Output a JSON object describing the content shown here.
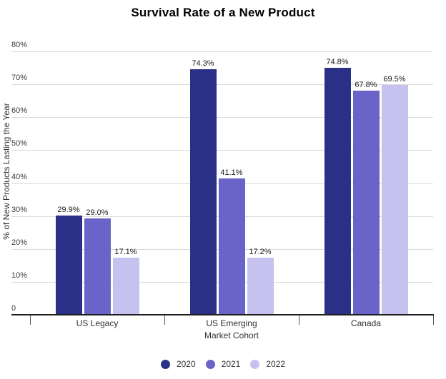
{
  "chart_data": {
    "type": "bar",
    "title": "Survival Rate of a New Product",
    "xlabel": "Market Cohort",
    "ylabel": "% of New Products Lasting the Year",
    "categories": [
      "US Legacy",
      "US Emerging",
      "Canada"
    ],
    "series": [
      {
        "name": "2020",
        "color": "#2b3087",
        "values": [
          29.9,
          74.3,
          74.8
        ],
        "labels": [
          "29.9%",
          "74.3%",
          "74.8%"
        ]
      },
      {
        "name": "2021",
        "color": "#6a64c8",
        "values": [
          29.0,
          41.1,
          67.8
        ],
        "labels": [
          "29.0%",
          "41.1%",
          "67.8%"
        ]
      },
      {
        "name": "2022",
        "color": "#c6c2f0",
        "values": [
          17.1,
          17.2,
          69.5
        ],
        "labels": [
          "17.1%",
          "17.2%",
          "69.5%"
        ]
      }
    ],
    "ylim": [
      0,
      80
    ],
    "yticks": [
      0,
      10,
      20,
      30,
      40,
      50,
      60,
      70,
      80
    ],
    "ytick_labels": [
      "0",
      "10%",
      "20%",
      "30%",
      "40%",
      "50%",
      "60%",
      "70%",
      "80%"
    ],
    "grid": true,
    "grid_color": "#dadada",
    "axis_color": "#1f1f1f",
    "legend_position": "bottom",
    "legend_marker": "circle"
  }
}
